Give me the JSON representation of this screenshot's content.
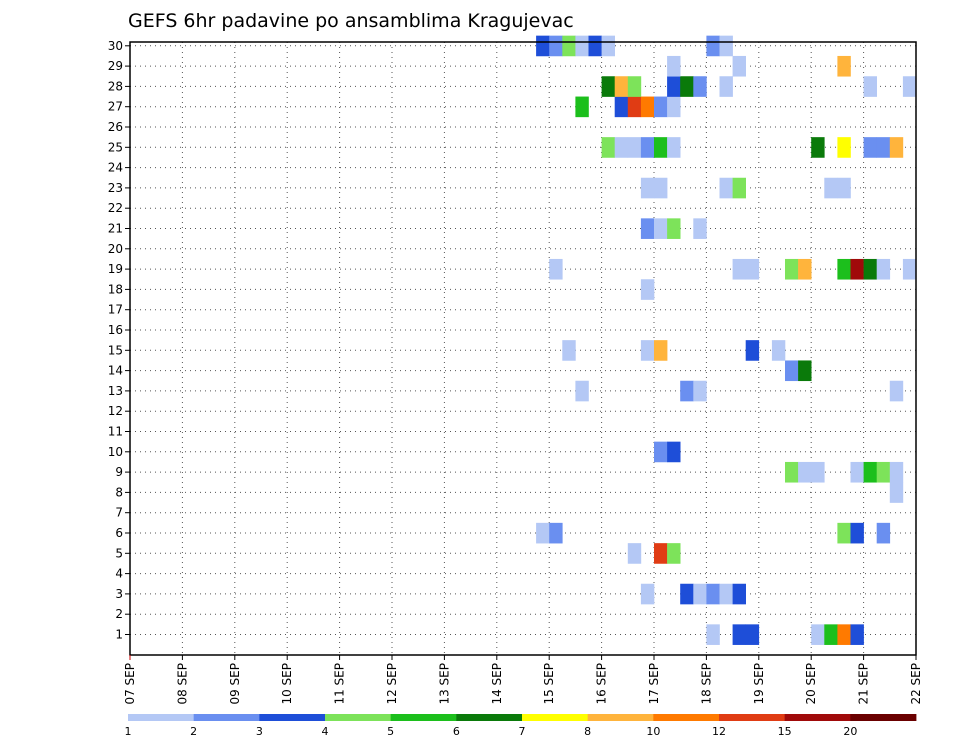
{
  "chart_data": {
    "type": "heatmap",
    "title": "GEFS 6hr padavine po ansamblima Kragujevac",
    "xlabel": "",
    "ylabel": "",
    "x_ticks": [
      "07 SEP",
      "08 SEP",
      "09 SEP",
      "10 SEP",
      "11 SEP",
      "12 SEP",
      "13 SEP",
      "14 SEP",
      "15 SEP",
      "16 SEP",
      "17 SEP",
      "18 SEP",
      "19 SEP",
      "20 SEP",
      "21 SEP",
      "22 SEP"
    ],
    "x_range": [
      "07 SEP 00h",
      "22 SEP 00h"
    ],
    "time_step_hours": 6,
    "y_ticks": [
      "1",
      "2",
      "3",
      "4",
      "5",
      "6",
      "7",
      "8",
      "9",
      "10",
      "11",
      "12",
      "13",
      "14",
      "15",
      "16",
      "17",
      "18",
      "19",
      "20",
      "21",
      "22",
      "23",
      "24",
      "25",
      "26",
      "27",
      "28",
      "29",
      "30"
    ],
    "grid": true,
    "legend": {
      "placement": "bottom",
      "colors": [
        "#b4c8f5",
        "#6a8ff0",
        "#1e4ed8",
        "#7de35a",
        "#1cbf1c",
        "#0a7a0a",
        "#ffff00",
        "#ffb43c",
        "#ff7a00",
        "#e03c14",
        "#a00a0a",
        "#6a0000"
      ],
      "labels": [
        "1",
        "2",
        "3",
        "4",
        "5",
        "6",
        "7",
        "8",
        "10",
        "12",
        "15",
        "20"
      ]
    },
    "cells": [
      {
        "m": 1,
        "x": "18 SEP 00h",
        "c": 0
      },
      {
        "m": 1,
        "x": "18 SEP 12h",
        "c": 2
      },
      {
        "m": 1,
        "x": "18 SEP 18h",
        "c": 2
      },
      {
        "m": 1,
        "x": "20 SEP 00h",
        "c": 0
      },
      {
        "m": 1,
        "x": "20 SEP 06h",
        "c": 4
      },
      {
        "m": 1,
        "x": "20 SEP 12h",
        "c": 8
      },
      {
        "m": 1,
        "x": "20 SEP 18h",
        "c": 2
      },
      {
        "m": 3,
        "x": "16 SEP 18h",
        "c": 0
      },
      {
        "m": 3,
        "x": "17 SEP 12h",
        "c": 2
      },
      {
        "m": 3,
        "x": "17 SEP 18h",
        "c": 0
      },
      {
        "m": 3,
        "x": "18 SEP 00h",
        "c": 1
      },
      {
        "m": 3,
        "x": "18 SEP 06h",
        "c": 0
      },
      {
        "m": 3,
        "x": "18 SEP 12h",
        "c": 2
      },
      {
        "m": 5,
        "x": "16 SEP 12h",
        "c": 0
      },
      {
        "m": 5,
        "x": "17 SEP 00h",
        "c": 9
      },
      {
        "m": 5,
        "x": "17 SEP 06h",
        "c": 3
      },
      {
        "m": 6,
        "x": "14 SEP 18h",
        "c": 0
      },
      {
        "m": 6,
        "x": "15 SEP 00h",
        "c": 1
      },
      {
        "m": 6,
        "x": "20 SEP 12h",
        "c": 3
      },
      {
        "m": 6,
        "x": "20 SEP 18h",
        "c": 2
      },
      {
        "m": 6,
        "x": "21 SEP 06h",
        "c": 1
      },
      {
        "m": 8,
        "x": "21 SEP 12h",
        "c": 0
      },
      {
        "m": 9,
        "x": "19 SEP 12h",
        "c": 3
      },
      {
        "m": 9,
        "x": "19 SEP 18h",
        "c": 0
      },
      {
        "m": 9,
        "x": "20 SEP 00h",
        "c": 0
      },
      {
        "m": 9,
        "x": "20 SEP 18h",
        "c": 0
      },
      {
        "m": 9,
        "x": "21 SEP 00h",
        "c": 4
      },
      {
        "m": 9,
        "x": "21 SEP 06h",
        "c": 3
      },
      {
        "m": 9,
        "x": "21 SEP 12h",
        "c": 0
      },
      {
        "m": 10,
        "x": "17 SEP 00h",
        "c": 1
      },
      {
        "m": 10,
        "x": "17 SEP 06h",
        "c": 2
      },
      {
        "m": 13,
        "x": "15 SEP 12h",
        "c": 0
      },
      {
        "m": 13,
        "x": "17 SEP 12h",
        "c": 1
      },
      {
        "m": 13,
        "x": "17 SEP 18h",
        "c": 0
      },
      {
        "m": 13,
        "x": "21 SEP 12h",
        "c": 0
      },
      {
        "m": 14,
        "x": "19 SEP 12h",
        "c": 1
      },
      {
        "m": 14,
        "x": "19 SEP 18h",
        "c": 5
      },
      {
        "m": 15,
        "x": "15 SEP 06h",
        "c": 0
      },
      {
        "m": 15,
        "x": "16 SEP 18h",
        "c": 0
      },
      {
        "m": 15,
        "x": "17 SEP 00h",
        "c": 7
      },
      {
        "m": 15,
        "x": "18 SEP 18h",
        "c": 2
      },
      {
        "m": 15,
        "x": "19 SEP 06h",
        "c": 0
      },
      {
        "m": 18,
        "x": "16 SEP 18h",
        "c": 0
      },
      {
        "m": 19,
        "x": "15 SEP 00h",
        "c": 0
      },
      {
        "m": 19,
        "x": "18 SEP 12h",
        "c": 0
      },
      {
        "m": 19,
        "x": "18 SEP 18h",
        "c": 0
      },
      {
        "m": 19,
        "x": "19 SEP 12h",
        "c": 3
      },
      {
        "m": 19,
        "x": "19 SEP 18h",
        "c": 7
      },
      {
        "m": 19,
        "x": "20 SEP 12h",
        "c": 4
      },
      {
        "m": 19,
        "x": "20 SEP 18h",
        "c": 10
      },
      {
        "m": 19,
        "x": "21 SEP 00h",
        "c": 5
      },
      {
        "m": 19,
        "x": "21 SEP 06h",
        "c": 0
      },
      {
        "m": 19,
        "x": "21 SEP 18h",
        "c": 0
      },
      {
        "m": 21,
        "x": "16 SEP 18h",
        "c": 1
      },
      {
        "m": 21,
        "x": "17 SEP 00h",
        "c": 0
      },
      {
        "m": 21,
        "x": "17 SEP 06h",
        "c": 3
      },
      {
        "m": 21,
        "x": "17 SEP 18h",
        "c": 0
      },
      {
        "m": 23,
        "x": "16 SEP 18h",
        "c": 0
      },
      {
        "m": 23,
        "x": "17 SEP 00h",
        "c": 0
      },
      {
        "m": 23,
        "x": "18 SEP 06h",
        "c": 0
      },
      {
        "m": 23,
        "x": "18 SEP 12h",
        "c": 3
      },
      {
        "m": 23,
        "x": "20 SEP 06h",
        "c": 0
      },
      {
        "m": 23,
        "x": "20 SEP 12h",
        "c": 0
      },
      {
        "m": 25,
        "x": "16 SEP 00h",
        "c": 3
      },
      {
        "m": 25,
        "x": "16 SEP 06h",
        "c": 0
      },
      {
        "m": 25,
        "x": "16 SEP 12h",
        "c": 0
      },
      {
        "m": 25,
        "x": "16 SEP 18h",
        "c": 1
      },
      {
        "m": 25,
        "x": "17 SEP 00h",
        "c": 4
      },
      {
        "m": 25,
        "x": "17 SEP 06h",
        "c": 0
      },
      {
        "m": 25,
        "x": "20 SEP 00h",
        "c": 5
      },
      {
        "m": 25,
        "x": "20 SEP 12h",
        "c": 6
      },
      {
        "m": 25,
        "x": "21 SEP 00h",
        "c": 1
      },
      {
        "m": 25,
        "x": "21 SEP 06h",
        "c": 1
      },
      {
        "m": 25,
        "x": "21 SEP 12h",
        "c": 7
      },
      {
        "m": 27,
        "x": "15 SEP 12h",
        "c": 4
      },
      {
        "m": 27,
        "x": "16 SEP 06h",
        "c": 2
      },
      {
        "m": 27,
        "x": "16 SEP 12h",
        "c": 9
      },
      {
        "m": 27,
        "x": "16 SEP 18h",
        "c": 8
      },
      {
        "m": 27,
        "x": "17 SEP 00h",
        "c": 1
      },
      {
        "m": 27,
        "x": "17 SEP 06h",
        "c": 0
      },
      {
        "m": 28,
        "x": "16 SEP 00h",
        "c": 5
      },
      {
        "m": 28,
        "x": "16 SEP 06h",
        "c": 7
      },
      {
        "m": 28,
        "x": "16 SEP 12h",
        "c": 3
      },
      {
        "m": 28,
        "x": "17 SEP 06h",
        "c": 2
      },
      {
        "m": 28,
        "x": "17 SEP 12h",
        "c": 5
      },
      {
        "m": 28,
        "x": "17 SEP 18h",
        "c": 1
      },
      {
        "m": 28,
        "x": "18 SEP 06h",
        "c": 0
      },
      {
        "m": 28,
        "x": "21 SEP 00h",
        "c": 0
      },
      {
        "m": 28,
        "x": "21 SEP 18h",
        "c": 0
      },
      {
        "m": 29,
        "x": "17 SEP 06h",
        "c": 0
      },
      {
        "m": 29,
        "x": "18 SEP 12h",
        "c": 0
      },
      {
        "m": 29,
        "x": "20 SEP 12h",
        "c": 7
      },
      {
        "m": 30,
        "x": "14 SEP 18h",
        "c": 2
      },
      {
        "m": 30,
        "x": "15 SEP 00h",
        "c": 1
      },
      {
        "m": 30,
        "x": "15 SEP 06h",
        "c": 3
      },
      {
        "m": 30,
        "x": "15 SEP 12h",
        "c": 0
      },
      {
        "m": 30,
        "x": "15 SEP 18h",
        "c": 2
      },
      {
        "m": 30,
        "x": "16 SEP 00h",
        "c": 0
      },
      {
        "m": 30,
        "x": "18 SEP 00h",
        "c": 1
      },
      {
        "m": 30,
        "x": "18 SEP 06h",
        "c": 0
      }
    ]
  }
}
